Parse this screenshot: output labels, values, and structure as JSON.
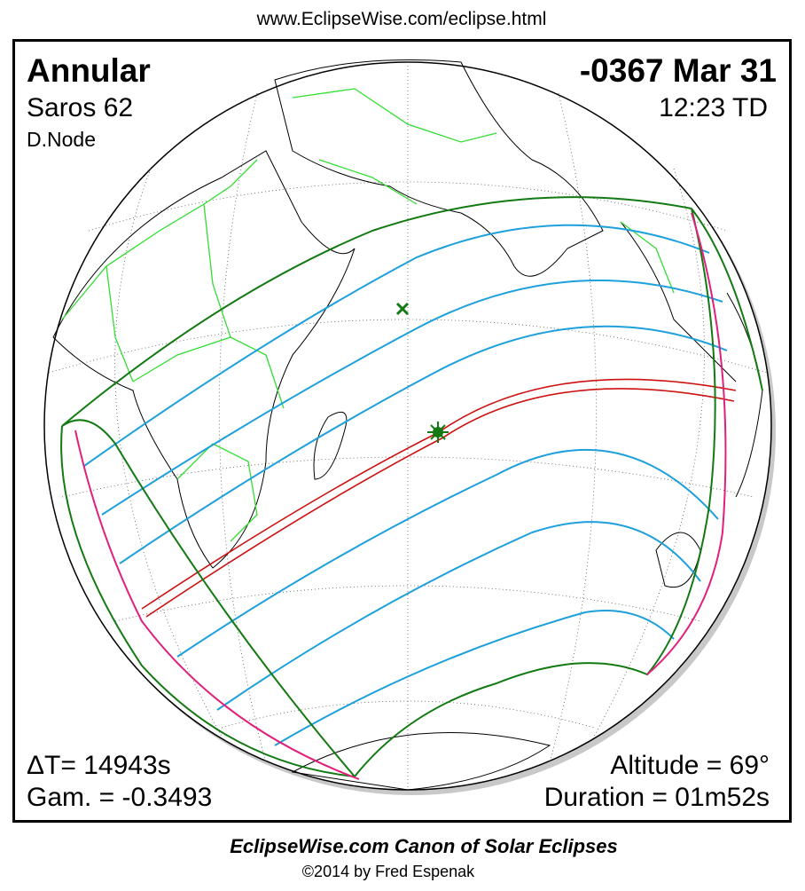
{
  "header": {
    "url": "www.EclipseWise.com/eclipse.html"
  },
  "eclipse": {
    "type": "Annular",
    "saros": "Saros  62",
    "node": "D.Node",
    "date": "-0367 Mar 31",
    "time": "12:23 TD",
    "delta_t": "ΔT=  14943s",
    "gamma": "Gam. = -0.3493",
    "altitude": "Altitude = 69°",
    "duration": "Duration = 01m52s"
  },
  "footer": {
    "title": "EclipseWise.com Canon of Solar Eclipses",
    "credit": "©2014 by Fred Espenak"
  }
}
